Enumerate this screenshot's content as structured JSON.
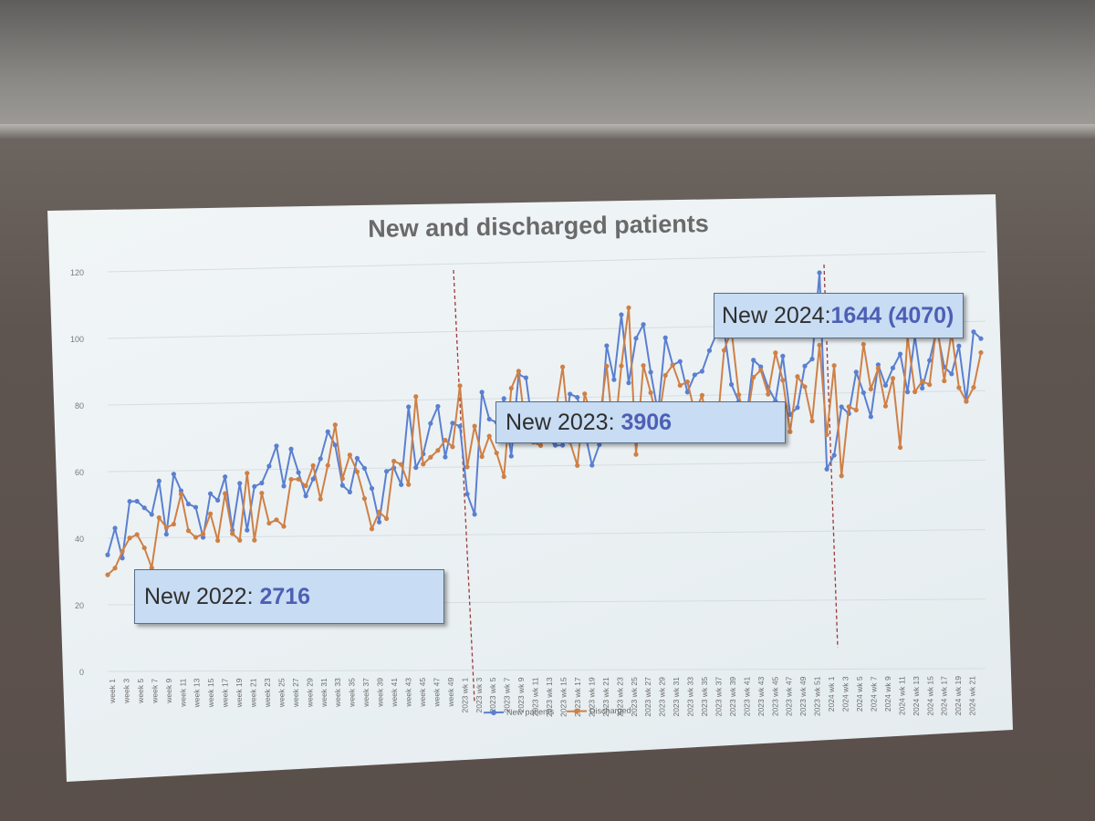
{
  "chart_data": {
    "type": "line",
    "title": "New and discharged patients",
    "ylim": [
      0,
      120
    ],
    "y_ticks": [
      "0",
      "20",
      "40",
      "60",
      "80",
      "100",
      "120"
    ],
    "x_tick_labels": [
      "week 1",
      "week 3",
      "week 5",
      "week 7",
      "week 9",
      "week 11",
      "week 13",
      "week 15",
      "week 17",
      "week 19",
      "week 21",
      "week 23",
      "week 25",
      "week 27",
      "week 29",
      "week 31",
      "week 33",
      "week 35",
      "week 37",
      "week 39",
      "week 41",
      "week 43",
      "week 45",
      "week 47",
      "week 49",
      "2023 wk 1",
      "2023 wk 3",
      "2023 wk 5",
      "2023 wk 7",
      "2023 wk 9",
      "2023 wk 11",
      "2023 wk 13",
      "2023 wk 15",
      "2023 wk 17",
      "2023 wk 19",
      "2023 wk 21",
      "2023 wk 23",
      "2023 wk 25",
      "2023 wk 27",
      "2023 wk 29",
      "2023 wk 31",
      "2023 wk 33",
      "2023 wk 35",
      "2023 wk 37",
      "2023 wk 39",
      "2023 wk 41",
      "2023 wk 43",
      "2023 wk 45",
      "2023 wk 47",
      "2023 wk 49",
      "2023 wk 51",
      "2024 wk 1",
      "2024 wk 3",
      "2024 wk 5",
      "2024 wk 7",
      "2024 wk 9",
      "2024 wk 11",
      "2024 wk 13",
      "2024 wk 15",
      "2024 wk 17",
      "2024 wk 19",
      "2024 wk 21"
    ],
    "grid": true,
    "legend_position": "bottom",
    "series": [
      {
        "name": "New patients",
        "color": "#5b7fd0",
        "values": [
          35,
          43,
          34,
          51,
          51,
          49,
          47,
          57,
          41,
          59,
          54,
          50,
          49,
          40,
          53,
          51,
          58,
          42,
          56,
          42,
          55,
          56,
          61,
          67,
          55,
          66,
          59,
          52,
          57,
          63,
          71,
          67,
          55,
          53,
          63,
          60,
          54,
          44,
          59,
          60,
          55,
          78,
          60,
          64,
          73,
          78,
          63,
          73,
          72,
          52,
          46,
          82,
          74,
          73,
          80,
          63,
          87,
          86,
          70,
          74,
          68,
          66,
          66,
          81,
          80,
          70,
          60,
          66,
          95,
          85,
          104,
          84,
          97,
          101,
          87,
          75,
          97,
          89,
          90,
          81,
          86,
          87,
          93,
          98,
          99,
          83,
          78,
          72,
          90,
          88,
          82,
          78,
          91,
          74,
          76,
          88,
          90,
          115,
          58,
          62,
          76,
          74,
          86,
          80,
          73,
          88,
          82,
          87,
          91,
          80,
          96,
          81,
          89,
          98,
          87,
          85,
          93,
          77,
          97,
          95
        ],
        "y_ticks_visible": true
      },
      {
        "name": "Discharged",
        "color": "#cf8046",
        "values": [
          29,
          31,
          36,
          40,
          41,
          37,
          31,
          46,
          43,
          44,
          53,
          42,
          40,
          41,
          47,
          39,
          53,
          41,
          39,
          59,
          39,
          53,
          44,
          45,
          43,
          57,
          57,
          55,
          61,
          51,
          61,
          73,
          57,
          64,
          59,
          51,
          42,
          47,
          45,
          62,
          61,
          55,
          81,
          61,
          63,
          65,
          68,
          66,
          84,
          60,
          72,
          63,
          69,
          64,
          57,
          83,
          88,
          70,
          67,
          66,
          73,
          75,
          89,
          67,
          60,
          81,
          74,
          73,
          89,
          67,
          89,
          106,
          63,
          89,
          81,
          72,
          86,
          89,
          83,
          84,
          75,
          80,
          67,
          69,
          93,
          99,
          80,
          71,
          85,
          87,
          80,
          92,
          84,
          69,
          85,
          82,
          72,
          94,
          68,
          88,
          56,
          76,
          75,
          94,
          81,
          87,
          76,
          84,
          64,
          96,
          80,
          83,
          82,
          100,
          83,
          97,
          81,
          77,
          81,
          91
        ]
      }
    ],
    "callouts": [
      {
        "label": "New 2022: ",
        "value": "2716"
      },
      {
        "label": "New 2023: ",
        "value": "3906"
      },
      {
        "label": "New 2024:",
        "value": "1644 (4070)"
      }
    ]
  }
}
